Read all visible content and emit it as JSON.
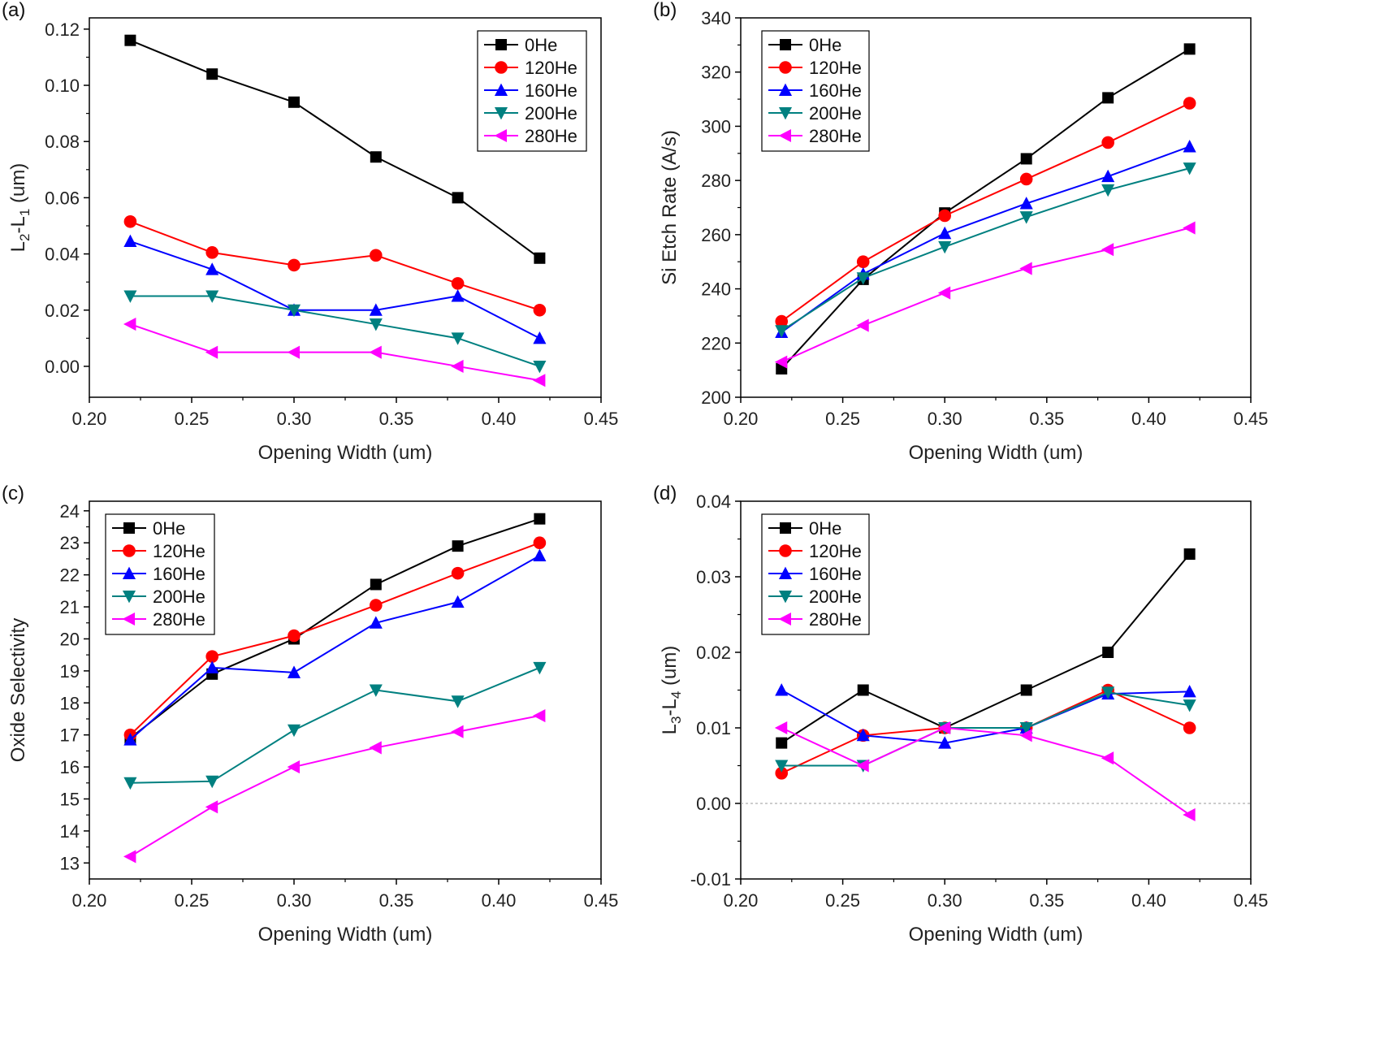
{
  "chart_data": [
    {
      "type": "line",
      "panel_label": "(a)",
      "xlabel": "Opening Width (um)",
      "ylabel": "L2-L1 (um)",
      "ylabel_main": "L",
      "ylabel_sub1": "2",
      "ylabel_mid": "-L",
      "ylabel_sub2": "1",
      "ylabel_tail": " (um)",
      "xlim": [
        0.2,
        0.45
      ],
      "ylim": [
        -0.011,
        0.124
      ],
      "xticks": [
        "0.20",
        "0.25",
        "0.30",
        "0.35",
        "0.40",
        "0.45"
      ],
      "yticks": [
        "0.00",
        "0.02",
        "0.04",
        "0.06",
        "0.08",
        "0.10",
        "0.12"
      ],
      "x": [
        0.22,
        0.26,
        0.3,
        0.34,
        0.38,
        0.42
      ],
      "legend_position": "top-right",
      "series": [
        {
          "name": "0He",
          "color": "#000000",
          "marker": "square",
          "values": [
            0.116,
            0.104,
            0.094,
            0.0745,
            0.06,
            0.0385
          ]
        },
        {
          "name": "120He",
          "color": "#ff0000",
          "marker": "circle",
          "values": [
            0.0515,
            0.0405,
            0.036,
            0.0395,
            0.0295,
            0.02
          ]
        },
        {
          "name": "160He",
          "color": "#0000ff",
          "marker": "triangle-up",
          "values": [
            0.0445,
            0.0345,
            0.02,
            0.02,
            0.025,
            0.01
          ]
        },
        {
          "name": "200He",
          "color": "#008080",
          "marker": "triangle-down",
          "values": [
            0.025,
            0.025,
            0.02,
            0.015,
            0.01,
            0.0
          ]
        },
        {
          "name": "280He",
          "color": "#ff00ff",
          "marker": "triangle-left",
          "values": [
            0.015,
            0.005,
            0.005,
            0.005,
            0.0,
            -0.005
          ]
        }
      ]
    },
    {
      "type": "line",
      "panel_label": "(b)",
      "xlabel": "Opening Width (um)",
      "ylabel": "Si Etch Rate (A/s)",
      "xlim": [
        0.2,
        0.45
      ],
      "ylim": [
        200,
        340
      ],
      "xticks": [
        "0.20",
        "0.25",
        "0.30",
        "0.35",
        "0.40",
        "0.45"
      ],
      "yticks": [
        "200",
        "220",
        "240",
        "260",
        "280",
        "300",
        "320",
        "340"
      ],
      "x": [
        0.22,
        0.26,
        0.3,
        0.34,
        0.38,
        0.42
      ],
      "legend_position": "top-left",
      "series": [
        {
          "name": "0He",
          "color": "#000000",
          "marker": "square",
          "values": [
            210.5,
            243.5,
            268,
            288,
            310.5,
            328.5
          ]
        },
        {
          "name": "120He",
          "color": "#ff0000",
          "marker": "circle",
          "values": [
            228,
            250,
            267,
            280.5,
            294,
            308.5
          ]
        },
        {
          "name": "160He",
          "color": "#0000ff",
          "marker": "triangle-up",
          "values": [
            224,
            245.5,
            260.5,
            271.5,
            281.5,
            292.5
          ]
        },
        {
          "name": "200He",
          "color": "#008080",
          "marker": "triangle-down",
          "values": [
            224.5,
            244,
            255.5,
            266.5,
            276.5,
            284.5
          ]
        },
        {
          "name": "280He",
          "color": "#ff00ff",
          "marker": "triangle-left",
          "values": [
            213,
            226.5,
            238.5,
            247.5,
            254.5,
            262.5
          ]
        }
      ]
    },
    {
      "type": "line",
      "panel_label": "(c)",
      "xlabel": "Opening Width (um)",
      "ylabel": "Oxide Selectivity",
      "xlim": [
        0.2,
        0.45
      ],
      "ylim": [
        12.5,
        24.3
      ],
      "xticks": [
        "0.20",
        "0.25",
        "0.30",
        "0.35",
        "0.40",
        "0.45"
      ],
      "yticks": [
        "13",
        "14",
        "15",
        "16",
        "17",
        "18",
        "19",
        "20",
        "21",
        "22",
        "23",
        "24"
      ],
      "x": [
        0.22,
        0.26,
        0.3,
        0.34,
        0.38,
        0.42
      ],
      "legend_position": "top-left",
      "series": [
        {
          "name": "0He",
          "color": "#000000",
          "marker": "square",
          "values": [
            16.9,
            18.9,
            20.0,
            21.7,
            22.9,
            23.75
          ]
        },
        {
          "name": "120He",
          "color": "#ff0000",
          "marker": "circle",
          "values": [
            17.0,
            19.45,
            20.1,
            21.05,
            22.05,
            23.0
          ]
        },
        {
          "name": "160He",
          "color": "#0000ff",
          "marker": "triangle-up",
          "values": [
            16.85,
            19.1,
            18.95,
            20.5,
            21.15,
            22.6
          ]
        },
        {
          "name": "200He",
          "color": "#008080",
          "marker": "triangle-down",
          "values": [
            15.5,
            15.55,
            17.15,
            18.4,
            18.05,
            19.1
          ]
        },
        {
          "name": "280He",
          "color": "#ff00ff",
          "marker": "triangle-left",
          "values": [
            13.2,
            14.75,
            16.0,
            16.6,
            17.1,
            17.6
          ]
        }
      ]
    },
    {
      "type": "line",
      "panel_label": "(d)",
      "xlabel": "Opening Width (um)",
      "ylabel": "L3-L4 (um)",
      "ylabel_main": "L",
      "ylabel_sub1": "3",
      "ylabel_mid": "-L",
      "ylabel_sub2": "4",
      "ylabel_tail": " (um)",
      "xlim": [
        0.2,
        0.45
      ],
      "ylim": [
        -0.01,
        0.04
      ],
      "xticks": [
        "0.20",
        "0.25",
        "0.30",
        "0.35",
        "0.40",
        "0.45"
      ],
      "yticks": [
        "-0.01",
        "0.00",
        "0.01",
        "0.02",
        "0.03",
        "0.04"
      ],
      "x": [
        0.22,
        0.26,
        0.3,
        0.34,
        0.38,
        0.42
      ],
      "legend_position": "top-left",
      "reference_line": 0.0,
      "series": [
        {
          "name": "0He",
          "color": "#000000",
          "marker": "square",
          "values": [
            0.008,
            0.015,
            0.01,
            0.015,
            0.02,
            0.033
          ]
        },
        {
          "name": "120He",
          "color": "#ff0000",
          "marker": "circle",
          "values": [
            0.004,
            0.009,
            0.01,
            0.01,
            0.015,
            0.01
          ]
        },
        {
          "name": "160He",
          "color": "#0000ff",
          "marker": "triangle-up",
          "values": [
            0.015,
            0.009,
            0.008,
            0.01,
            0.0145,
            0.0148
          ]
        },
        {
          "name": "200He",
          "color": "#008080",
          "marker": "triangle-down",
          "values": [
            0.005,
            0.005,
            0.01,
            0.01,
            0.0147,
            0.013
          ]
        },
        {
          "name": "280He",
          "color": "#ff00ff",
          "marker": "triangle-left",
          "values": [
            0.01,
            0.005,
            0.01,
            0.009,
            0.006,
            -0.0015
          ]
        }
      ]
    }
  ]
}
